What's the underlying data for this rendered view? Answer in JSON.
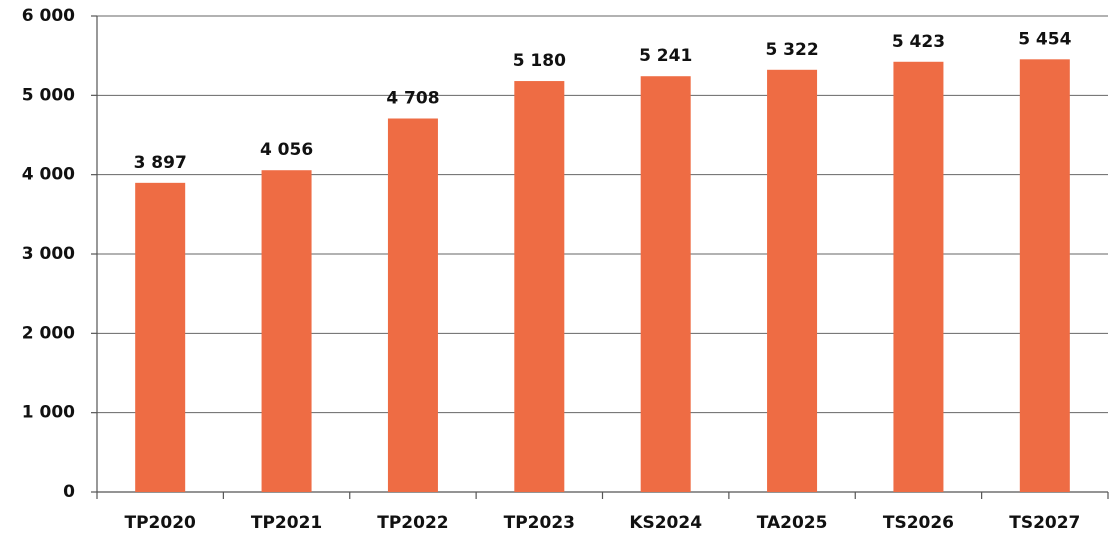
{
  "chart_data": {
    "type": "bar",
    "categories": [
      "TP2020",
      "TP2021",
      "TP2022",
      "TP2023",
      "KS2024",
      "TA2025",
      "TS2026",
      "TS2027"
    ],
    "values": [
      3897,
      4056,
      4708,
      5180,
      5241,
      5322,
      5423,
      5454
    ],
    "value_labels": [
      "3 897",
      "4 056",
      "4 708",
      "5 180",
      "5 241",
      "5 322",
      "5 423",
      "5 454"
    ],
    "color": "#ee6c44",
    "ylim": [
      0,
      6000
    ],
    "yticks": [
      0,
      {
        "value": 1000,
        "label": "1 000"
      },
      {
        "value": 2000,
        "label": "2 000"
      },
      {
        "value": 3000,
        "label": "3 000"
      },
      {
        "value": 4000,
        "label": "4 000"
      },
      {
        "value": 5000,
        "label": "5 000"
      },
      {
        "value": 6000,
        "label": "6 000"
      }
    ],
    "grid": true
  }
}
